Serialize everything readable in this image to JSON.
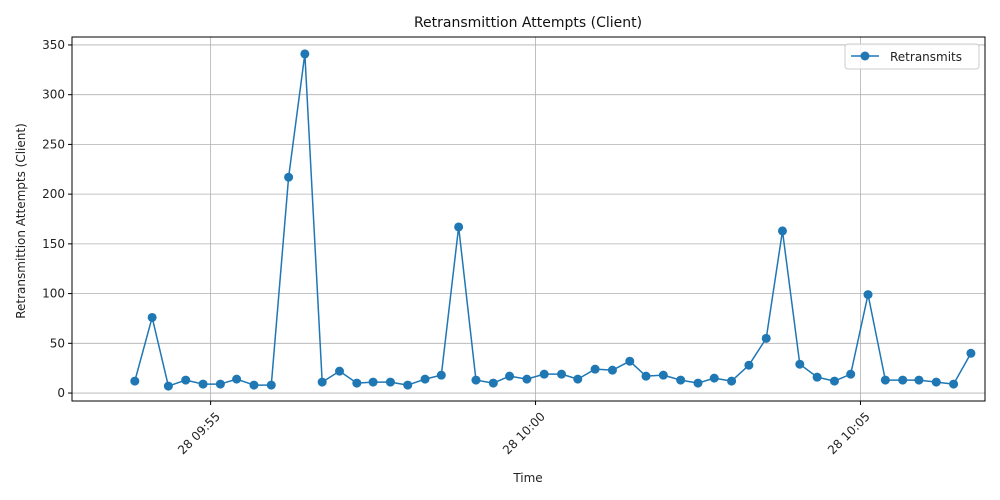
{
  "chart_data": {
    "type": "line",
    "title": "Retransmittion Attempts (Client)",
    "xlabel": "Time",
    "ylabel": "Retransmittion Attempts (Client)",
    "x_ticks": [
      "28 09:55",
      "28 10:00",
      "28 10:05"
    ],
    "x_tick_minutes": [
      -5,
      0,
      5
    ],
    "y_ticks": [
      0,
      50,
      100,
      150,
      200,
      250,
      300,
      350
    ],
    "xlim": [
      "09:52:52",
      "10:06:55"
    ],
    "ylim": [
      -8,
      358
    ],
    "grid": true,
    "legend_position": "top-right",
    "series": [
      {
        "name": "Retransmits",
        "color": "#1f77b4",
        "marker": "circle",
        "x": [
          "09:53:50",
          "09:54:06",
          "09:54:21",
          "09:54:37",
          "09:54:53",
          "09:55:09",
          "09:55:24",
          "09:55:40",
          "09:55:56",
          "09:56:12",
          "09:56:27",
          "09:56:43",
          "09:56:59",
          "09:57:15",
          "09:57:30",
          "09:57:46",
          "09:58:02",
          "09:58:18",
          "09:58:33",
          "09:58:49",
          "09:59:05",
          "09:59:21",
          "09:59:36",
          "09:59:52",
          "10:00:08",
          "10:00:24",
          "10:00:39",
          "10:00:55",
          "10:01:11",
          "10:01:27",
          "10:01:42",
          "10:01:58",
          "10:02:14",
          "10:02:30",
          "10:02:45",
          "10:03:01",
          "10:03:17",
          "10:03:33",
          "10:03:48",
          "10:04:04",
          "10:04:20",
          "10:04:36",
          "10:04:51",
          "10:05:07",
          "10:05:23",
          "10:05:39",
          "10:05:54",
          "10:06:10",
          "10:06:26",
          "10:06:42"
        ],
        "values": [
          12,
          76,
          7,
          13,
          9,
          9,
          14,
          8,
          8,
          217,
          341,
          11,
          22,
          10,
          11,
          11,
          8,
          14,
          18,
          167,
          13,
          10,
          17,
          14,
          19,
          19,
          14,
          24,
          23,
          32,
          17,
          18,
          13,
          10,
          15,
          12,
          28,
          55,
          163,
          29,
          16,
          12,
          19,
          99,
          13,
          13,
          13,
          11,
          9,
          40
        ]
      }
    ]
  }
}
